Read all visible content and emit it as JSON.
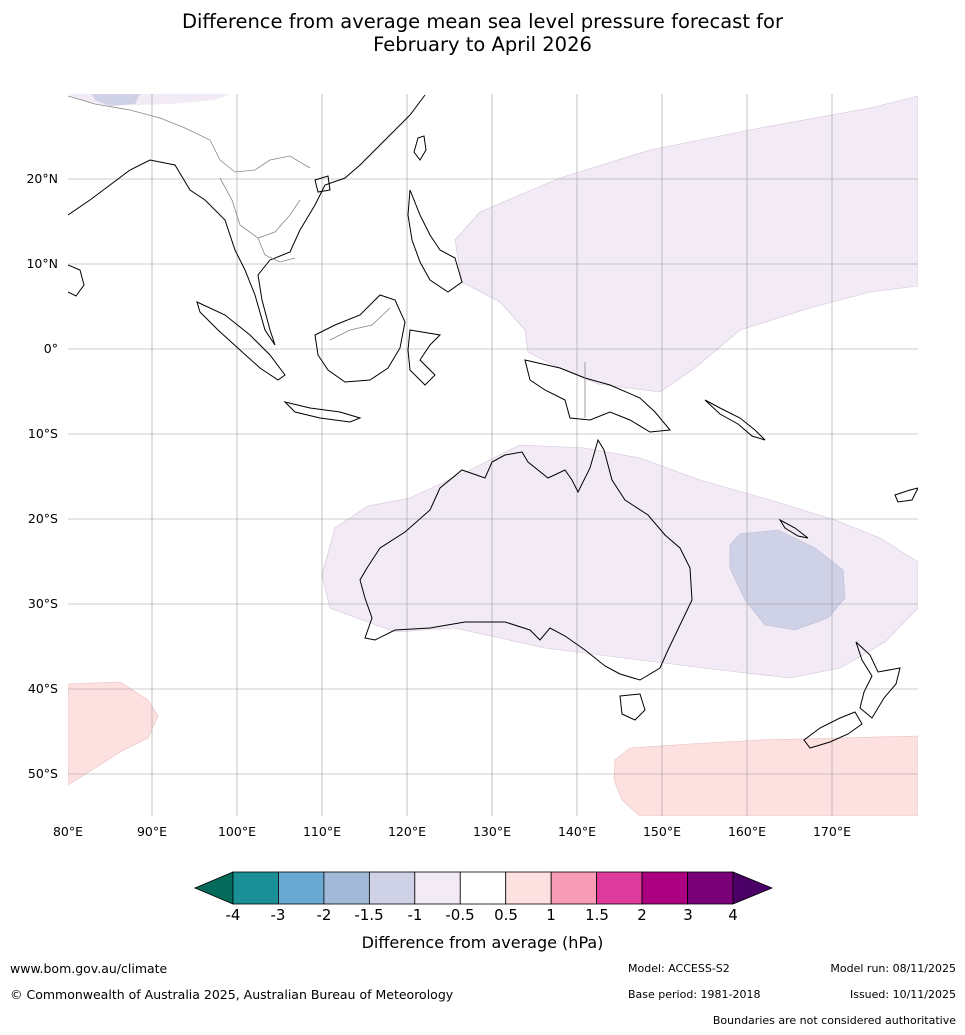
{
  "title": {
    "line1": "Difference from average mean sea level pressure forecast for",
    "line2": "February to April 2026"
  },
  "map": {
    "lat_labels": [
      "20°N",
      "10°N",
      "0°",
      "10°S",
      "20°S",
      "30°S",
      "40°S",
      "50°S"
    ],
    "lon_labels": [
      "80°E",
      "90°E",
      "100°E",
      "110°E",
      "120°E",
      "130°E",
      "140°E",
      "150°E",
      "160°E",
      "170°E"
    ],
    "lat_range": [
      -55,
      30
    ],
    "lon_range": [
      80,
      180
    ],
    "anomaly_regions": [
      {
        "name": "Western Pacific",
        "category": "-1 to -0.5 hPa",
        "color": "#f2ebf5"
      },
      {
        "name": "Australia",
        "category": "-1 to -0.5 hPa",
        "color": "#f2ebf5"
      },
      {
        "name": "Tasman Sea / Coral Sea",
        "category": "-1.5 to -1 hPa",
        "color": "#cfd1e6"
      },
      {
        "name": "Southern Indian Ocean",
        "category": "0.5 to 1 hPa",
        "color": "#fde0e0"
      },
      {
        "name": "Southern Ocean south of Australia",
        "category": "0.5 to 1 hPa",
        "color": "#fde0e0"
      }
    ]
  },
  "colorbar": {
    "ticks": [
      "-4",
      "-3",
      "-2",
      "-1.5",
      "-1",
      "-0.5",
      "0.5",
      "1",
      "1.5",
      "2",
      "3",
      "4"
    ],
    "colors": [
      "#1a8f96",
      "#6aaad2",
      "#a3b9d8",
      "#cfd1e6",
      "#f2ebf5",
      "#ffffff",
      "#fde0e0",
      "#f89cb8",
      "#de3a9c",
      "#ab007f",
      "#7a0078"
    ],
    "extend_low_color": "#066a5b",
    "extend_high_color": "#4a0067",
    "label": "Difference from average (hPa)"
  },
  "footer": {
    "url": "www.bom.gov.au/climate",
    "copyright": "© Commonwealth of Australia 2025, Australian Bureau of Meteorology",
    "model": "Model: ACCESS-S2",
    "base_period": "Base period: 1981-2018",
    "model_run": "Model run: 08/11/2025",
    "issued": "Issued: 10/11/2025",
    "disclaimer": "Boundaries are not considered authoritative"
  }
}
